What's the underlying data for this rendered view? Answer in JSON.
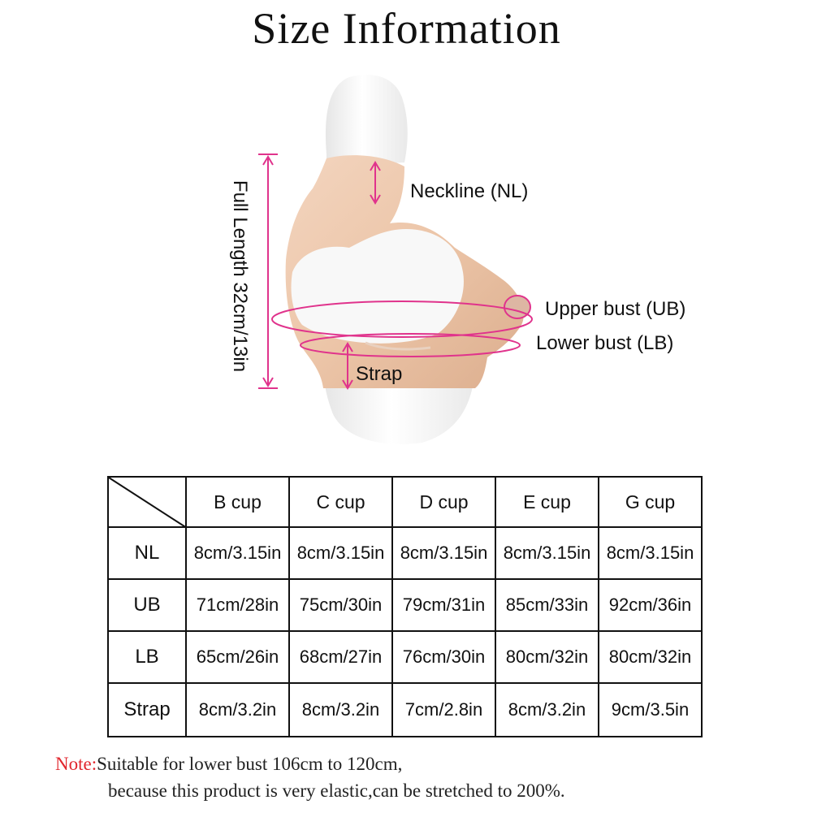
{
  "title": "Size Information",
  "figure": {
    "full_length_label": "Full Length  32cm/13in",
    "neckline_label": "Neckline (NL)",
    "upper_bust_label": "Upper bust (UB)",
    "lower_bust_label": "Lower  bust (LB)",
    "strap_label": "Strap"
  },
  "table": {
    "columns": [
      "B cup",
      "C cup",
      "D cup",
      "E cup",
      "G cup"
    ],
    "rows": [
      {
        "label": "NL",
        "values": [
          "8cm/3.15in",
          "8cm/3.15in",
          "8cm/3.15in",
          "8cm/3.15in",
          "8cm/3.15in"
        ]
      },
      {
        "label": "UB",
        "values": [
          "71cm/28in",
          "75cm/30in",
          "79cm/31in",
          "85cm/33in",
          "92cm/36in"
        ]
      },
      {
        "label": "LB",
        "values": [
          "65cm/26in",
          "68cm/27in",
          "76cm/30in",
          "80cm/32in",
          "80cm/32in"
        ]
      },
      {
        "label": "Strap",
        "values": [
          "8cm/3.2in",
          "8cm/3.2in",
          "7cm/2.8in",
          "8cm/3.2in",
          "9cm/3.5in"
        ]
      }
    ]
  },
  "note": {
    "prefix": "Note:",
    "line1": "Suitable for lower bust 106cm to 120cm,",
    "line2": "because this product is very elastic,can be stretched to 200%."
  },
  "colors": {
    "accent": "#e0338c",
    "skin": "#ecc7ac",
    "mannequin": "#f6f6f6",
    "note_red": "#e1262d"
  }
}
